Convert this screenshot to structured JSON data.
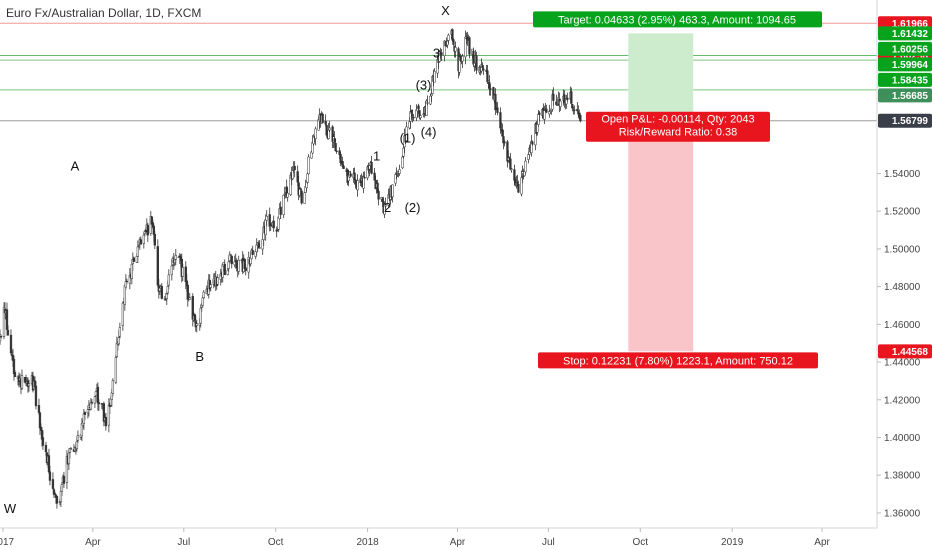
{
  "chart_data": {
    "type": "candlestick",
    "title": "Euro Fx/Australian Dollar, 1D, FXCM",
    "x_ticks": [
      "2017",
      "Apr",
      "Jul",
      "Oct",
      "2018",
      "Apr",
      "Jul",
      "Oct",
      "2019",
      "Apr"
    ],
    "y_ticks": [
      "1.36000",
      "1.38000",
      "1.40000",
      "1.42000",
      "1.44000",
      "1.46000",
      "1.48000",
      "1.50000",
      "1.52000",
      "1.54000"
    ],
    "ylim": [
      1.352,
      1.632
    ],
    "grid": false,
    "price_labels": [
      {
        "text": "1.61966",
        "value": 1.61966,
        "color": "#e8141e"
      },
      {
        "text": "1.61432",
        "value": 1.61432,
        "color": "#07a31d"
      },
      {
        "text": "1.60256",
        "value": 1.60256,
        "color": "#e8141e"
      },
      {
        "text": "1.60256",
        "value": 1.60256,
        "color": "#07a31d",
        "slot": 1
      },
      {
        "text": "1.59964",
        "value": 1.59964,
        "color": "#07a31d",
        "slot": 2
      },
      {
        "text": "1.58435",
        "value": 1.58435,
        "color": "#07a31d",
        "slot": 3
      },
      {
        "text": "1.56799",
        "value": 1.56799,
        "color": "#3a3e48"
      },
      {
        "text": "1.56685",
        "value": 1.56685,
        "color": "#3f8f5a",
        "slot": 4
      },
      {
        "text": "1.44568",
        "value": 1.44568,
        "color": "#e8141e"
      }
    ],
    "horizontal_lines": [
      {
        "value": 1.61966,
        "color": "#ef9a9a"
      },
      {
        "value": 1.60256,
        "color": "#66bb6a"
      },
      {
        "value": 1.6001,
        "color": "#81c784"
      },
      {
        "value": 1.58435,
        "color": "#81c784"
      },
      {
        "value": 1.56799,
        "color": "#9e9e9e"
      }
    ],
    "wave_labels": [
      {
        "text": "W",
        "x": "2017-01-08",
        "y": 1.36
      },
      {
        "text": "A",
        "x": "2017-03-14",
        "y": 1.5415
      },
      {
        "text": "B",
        "x": "2017-07-17",
        "y": 1.4405
      },
      {
        "text": "X",
        "x": "2018-03-20",
        "y": 1.624
      },
      {
        "text": "1",
        "x": "2018-01-10",
        "y": 1.547
      },
      {
        "text": "2",
        "x": "2018-01-21",
        "y": 1.5195
      },
      {
        "text": "(1)",
        "x": "2018-02-10",
        "y": 1.5565
      },
      {
        "text": "(2)",
        "x": "2018-02-15",
        "y": 1.5195
      },
      {
        "text": "(3)",
        "x": "2018-02-26",
        "y": 1.5845
      },
      {
        "text": "(4)",
        "x": "2018-03-03",
        "y": 1.5595
      },
      {
        "text": "3",
        "x": "2018-03-11",
        "y": 1.6015
      }
    ],
    "position": {
      "entry": 1.56799,
      "target": 1.61432,
      "stop": 1.44568,
      "start": "2018-09-19",
      "end": "2018-11-23",
      "target_label": "Target: 0.04633 (2.95%) 463.3, Amount: 1094.65",
      "stop_label": "Stop: 0.12231 (7.80%) 1223.1, Amount: 750.12",
      "pnl_label": "Open P&L: -0.00114, Qty: 2043",
      "rr_label": "Risk/Reward Ratio: 0.38"
    },
    "colors": {
      "candle": "#333333",
      "target_fill": "#cdeccd",
      "stop_fill": "#f9c5c8",
      "label_green": "#07a31d",
      "label_red": "#e8141e"
    },
    "price_path": [
      {
        "x": "2016-12-28",
        "y": 1.45
      },
      {
        "x": "2017-01-03",
        "y": 1.468
      },
      {
        "x": "2017-01-12",
        "y": 1.436
      },
      {
        "x": "2017-01-20",
        "y": 1.429
      },
      {
        "x": "2017-01-30",
        "y": 1.432
      },
      {
        "x": "2017-02-08",
        "y": 1.405
      },
      {
        "x": "2017-02-18",
        "y": 1.378
      },
      {
        "x": "2017-02-26",
        "y": 1.366
      },
      {
        "x": "2017-03-08",
        "y": 1.392
      },
      {
        "x": "2017-03-17",
        "y": 1.4
      },
      {
        "x": "2017-03-27",
        "y": 1.418
      },
      {
        "x": "2017-04-05",
        "y": 1.423
      },
      {
        "x": "2017-04-15",
        "y": 1.407
      },
      {
        "x": "2017-04-25",
        "y": 1.448
      },
      {
        "x": "2017-05-03",
        "y": 1.478
      },
      {
        "x": "2017-05-13",
        "y": 1.495
      },
      {
        "x": "2017-05-20",
        "y": 1.504
      },
      {
        "x": "2017-05-30",
        "y": 1.515
      },
      {
        "x": "2017-06-06",
        "y": 1.478
      },
      {
        "x": "2017-06-13",
        "y": 1.476
      },
      {
        "x": "2017-06-23",
        "y": 1.499
      },
      {
        "x": "2017-07-01",
        "y": 1.486
      },
      {
        "x": "2017-07-08",
        "y": 1.468
      },
      {
        "x": "2017-07-15",
        "y": 1.458
      },
      {
        "x": "2017-07-22",
        "y": 1.478
      },
      {
        "x": "2017-08-05",
        "y": 1.485
      },
      {
        "x": "2017-08-17",
        "y": 1.495
      },
      {
        "x": "2017-08-30",
        "y": 1.49
      },
      {
        "x": "2017-09-12",
        "y": 1.5
      },
      {
        "x": "2017-09-22",
        "y": 1.514
      },
      {
        "x": "2017-10-01",
        "y": 1.51
      },
      {
        "x": "2017-10-10",
        "y": 1.527
      },
      {
        "x": "2017-10-19",
        "y": 1.54
      },
      {
        "x": "2017-10-28",
        "y": 1.525
      },
      {
        "x": "2017-11-06",
        "y": 1.555
      },
      {
        "x": "2017-11-14",
        "y": 1.57
      },
      {
        "x": "2017-11-22",
        "y": 1.562
      },
      {
        "x": "2017-12-01",
        "y": 1.555
      },
      {
        "x": "2017-12-09",
        "y": 1.54
      },
      {
        "x": "2017-12-18",
        "y": 1.536
      },
      {
        "x": "2017-12-27",
        "y": 1.535
      },
      {
        "x": "2018-01-04",
        "y": 1.545
      },
      {
        "x": "2018-01-12",
        "y": 1.528
      },
      {
        "x": "2018-01-18",
        "y": 1.522
      },
      {
        "x": "2018-01-26",
        "y": 1.532
      },
      {
        "x": "2018-02-03",
        "y": 1.545
      },
      {
        "x": "2018-02-10",
        "y": 1.565
      },
      {
        "x": "2018-02-17",
        "y": 1.575
      },
      {
        "x": "2018-02-24",
        "y": 1.57
      },
      {
        "x": "2018-03-03",
        "y": 1.577
      },
      {
        "x": "2018-03-10",
        "y": 1.598
      },
      {
        "x": "2018-03-18",
        "y": 1.606
      },
      {
        "x": "2018-03-25",
        "y": 1.617
      },
      {
        "x": "2018-04-02",
        "y": 1.598
      },
      {
        "x": "2018-04-10",
        "y": 1.611
      },
      {
        "x": "2018-04-18",
        "y": 1.6
      },
      {
        "x": "2018-04-26",
        "y": 1.594
      },
      {
        "x": "2018-05-04",
        "y": 1.587
      },
      {
        "x": "2018-05-12",
        "y": 1.572
      },
      {
        "x": "2018-05-19",
        "y": 1.552
      },
      {
        "x": "2018-05-26",
        "y": 1.541
      },
      {
        "x": "2018-06-01",
        "y": 1.531
      },
      {
        "x": "2018-06-08",
        "y": 1.545
      },
      {
        "x": "2018-06-15",
        "y": 1.556
      },
      {
        "x": "2018-06-22",
        "y": 1.571
      },
      {
        "x": "2018-06-30",
        "y": 1.574
      },
      {
        "x": "2018-07-07",
        "y": 1.58
      },
      {
        "x": "2018-07-14",
        "y": 1.576
      },
      {
        "x": "2018-07-21",
        "y": 1.582
      },
      {
        "x": "2018-07-28",
        "y": 1.575
      },
      {
        "x": "2018-08-02",
        "y": 1.57
      }
    ]
  }
}
